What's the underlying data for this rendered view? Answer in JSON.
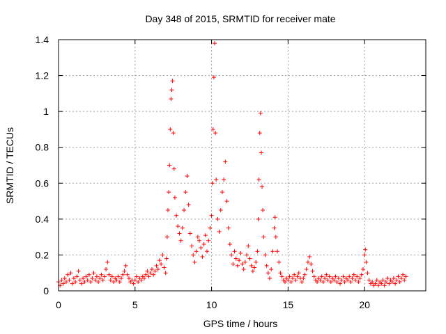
{
  "chart_data": {
    "type": "scatter",
    "title": "Day 348 of 2015, SRMTID for receiver mate",
    "xlabel": "GPS time / hours",
    "ylabel": "SRMTID / TECUs",
    "xlim": [
      0,
      24
    ],
    "ylim": [
      0,
      1.4
    ],
    "x_ticks": [
      "0",
      "5",
      "10",
      "15",
      "20"
    ],
    "y_ticks": [
      "0",
      "0.2",
      "0.4",
      "0.6",
      "0.8",
      "1",
      "1.2",
      "1.4"
    ],
    "grid": true,
    "marker": "+",
    "series": [
      {
        "name": "SRMTID",
        "color": "#ff0000",
        "points": [
          [
            0.0,
            0.05
          ],
          [
            0.1,
            0.03
          ],
          [
            0.2,
            0.06
          ],
          [
            0.3,
            0.04
          ],
          [
            0.4,
            0.07
          ],
          [
            0.5,
            0.05
          ],
          [
            0.6,
            0.09
          ],
          [
            0.7,
            0.06
          ],
          [
            0.8,
            0.1
          ],
          [
            0.9,
            0.04
          ],
          [
            1.0,
            0.07
          ],
          [
            1.1,
            0.05
          ],
          [
            1.2,
            0.08
          ],
          [
            1.3,
            0.11
          ],
          [
            1.4,
            0.06
          ],
          [
            1.5,
            0.04
          ],
          [
            1.6,
            0.07
          ],
          [
            1.7,
            0.05
          ],
          [
            1.8,
            0.08
          ],
          [
            1.9,
            0.06
          ],
          [
            2.0,
            0.09
          ],
          [
            2.1,
            0.05
          ],
          [
            2.2,
            0.07
          ],
          [
            2.3,
            0.1
          ],
          [
            2.4,
            0.06
          ],
          [
            2.5,
            0.08
          ],
          [
            2.6,
            0.05
          ],
          [
            2.7,
            0.07
          ],
          [
            2.8,
            0.09
          ],
          [
            2.9,
            0.06
          ],
          [
            3.0,
            0.08
          ],
          [
            3.1,
            0.12
          ],
          [
            3.2,
            0.16
          ],
          [
            3.3,
            0.09
          ],
          [
            3.4,
            0.06
          ],
          [
            3.5,
            0.08
          ],
          [
            3.6,
            0.05
          ],
          [
            3.7,
            0.07
          ],
          [
            3.8,
            0.06
          ],
          [
            3.9,
            0.08
          ],
          [
            4.0,
            0.05
          ],
          [
            4.1,
            0.07
          ],
          [
            4.2,
            0.09
          ],
          [
            4.3,
            0.11
          ],
          [
            4.4,
            0.14
          ],
          [
            4.5,
            0.09
          ],
          [
            4.6,
            0.07
          ],
          [
            4.7,
            0.05
          ],
          [
            4.8,
            0.06
          ],
          [
            4.9,
            0.04
          ],
          [
            5.0,
            0.06
          ],
          [
            5.1,
            0.08
          ],
          [
            5.2,
            0.05
          ],
          [
            5.3,
            0.07
          ],
          [
            5.4,
            0.06
          ],
          [
            5.5,
            0.08
          ],
          [
            5.6,
            0.07
          ],
          [
            5.7,
            0.09
          ],
          [
            5.8,
            0.11
          ],
          [
            5.9,
            0.08
          ],
          [
            6.0,
            0.1
          ],
          [
            6.1,
            0.12
          ],
          [
            6.2,
            0.09
          ],
          [
            6.3,
            0.11
          ],
          [
            6.4,
            0.14
          ],
          [
            6.5,
            0.12
          ],
          [
            6.6,
            0.17
          ],
          [
            6.7,
            0.15
          ],
          [
            6.8,
            0.2
          ],
          [
            6.9,
            0.13
          ],
          [
            7.0,
            0.1
          ],
          [
            7.05,
            0.18
          ],
          [
            7.1,
            0.3
          ],
          [
            7.15,
            0.45
          ],
          [
            7.2,
            0.55
          ],
          [
            7.25,
            0.7
          ],
          [
            7.3,
            0.9
          ],
          [
            7.35,
            1.07
          ],
          [
            7.4,
            1.12
          ],
          [
            7.45,
            1.17
          ],
          [
            7.5,
            0.88
          ],
          [
            7.55,
            0.68
          ],
          [
            7.6,
            0.52
          ],
          [
            7.7,
            0.42
          ],
          [
            7.8,
            0.36
          ],
          [
            7.9,
            0.32
          ],
          [
            8.0,
            0.28
          ],
          [
            8.1,
            0.35
          ],
          [
            8.2,
            0.45
          ],
          [
            8.3,
            0.55
          ],
          [
            8.4,
            0.64
          ],
          [
            8.5,
            0.48
          ],
          [
            8.6,
            0.32
          ],
          [
            8.7,
            0.25
          ],
          [
            8.8,
            0.2
          ],
          [
            8.9,
            0.16
          ],
          [
            9.0,
            0.22
          ],
          [
            9.1,
            0.3
          ],
          [
            9.2,
            0.28
          ],
          [
            9.3,
            0.24
          ],
          [
            9.4,
            0.19
          ],
          [
            9.5,
            0.26
          ],
          [
            9.6,
            0.31
          ],
          [
            9.7,
            0.22
          ],
          [
            9.8,
            0.28
          ],
          [
            9.9,
            0.35
          ],
          [
            10.0,
            0.42
          ],
          [
            10.05,
            0.6
          ],
          [
            10.1,
            0.9
          ],
          [
            10.15,
            1.19
          ],
          [
            10.2,
            1.38
          ],
          [
            10.25,
            0.88
          ],
          [
            10.3,
            0.62
          ],
          [
            10.4,
            0.4
          ],
          [
            10.5,
            0.33
          ],
          [
            10.6,
            0.45
          ],
          [
            10.7,
            0.55
          ],
          [
            10.8,
            0.62
          ],
          [
            10.9,
            0.72
          ],
          [
            11.0,
            0.5
          ],
          [
            11.1,
            0.35
          ],
          [
            11.2,
            0.26
          ],
          [
            11.3,
            0.2
          ],
          [
            11.4,
            0.15
          ],
          [
            11.5,
            0.22
          ],
          [
            11.6,
            0.18
          ],
          [
            11.7,
            0.14
          ],
          [
            11.8,
            0.17
          ],
          [
            11.9,
            0.21
          ],
          [
            12.0,
            0.15
          ],
          [
            12.1,
            0.12
          ],
          [
            12.2,
            0.16
          ],
          [
            12.3,
            0.2
          ],
          [
            12.4,
            0.25
          ],
          [
            12.5,
            0.18
          ],
          [
            12.6,
            0.14
          ],
          [
            12.7,
            0.11
          ],
          [
            12.8,
            0.13
          ],
          [
            12.9,
            0.16
          ],
          [
            13.0,
            0.22
          ],
          [
            13.05,
            0.4
          ],
          [
            13.1,
            0.62
          ],
          [
            13.15,
            0.88
          ],
          [
            13.2,
            0.99
          ],
          [
            13.25,
            0.77
          ],
          [
            13.3,
            0.58
          ],
          [
            13.35,
            0.45
          ],
          [
            13.4,
            0.3
          ],
          [
            13.5,
            0.2
          ],
          [
            13.6,
            0.14
          ],
          [
            13.7,
            0.1
          ],
          [
            13.8,
            0.07
          ],
          [
            13.9,
            0.12
          ],
          [
            14.0,
            0.22
          ],
          [
            14.1,
            0.35
          ],
          [
            14.15,
            0.41
          ],
          [
            14.2,
            0.3
          ],
          [
            14.3,
            0.22
          ],
          [
            14.4,
            0.16
          ],
          [
            14.5,
            0.1
          ],
          [
            14.6,
            0.08
          ],
          [
            14.7,
            0.06
          ],
          [
            14.8,
            0.05
          ],
          [
            14.9,
            0.07
          ],
          [
            15.0,
            0.06
          ],
          [
            15.1,
            0.08
          ],
          [
            15.2,
            0.05
          ],
          [
            15.3,
            0.07
          ],
          [
            15.4,
            0.09
          ],
          [
            15.5,
            0.06
          ],
          [
            15.6,
            0.08
          ],
          [
            15.7,
            0.1
          ],
          [
            15.8,
            0.07
          ],
          [
            15.9,
            0.05
          ],
          [
            16.0,
            0.07
          ],
          [
            16.1,
            0.09
          ],
          [
            16.2,
            0.12
          ],
          [
            16.3,
            0.16
          ],
          [
            16.4,
            0.19
          ],
          [
            16.5,
            0.15
          ],
          [
            16.6,
            0.11
          ],
          [
            16.7,
            0.08
          ],
          [
            16.8,
            0.06
          ],
          [
            16.9,
            0.05
          ],
          [
            17.0,
            0.07
          ],
          [
            17.1,
            0.06
          ],
          [
            17.2,
            0.08
          ],
          [
            17.3,
            0.05
          ],
          [
            17.4,
            0.07
          ],
          [
            17.5,
            0.09
          ],
          [
            17.6,
            0.06
          ],
          [
            17.7,
            0.08
          ],
          [
            17.8,
            0.05
          ],
          [
            17.9,
            0.07
          ],
          [
            18.0,
            0.06
          ],
          [
            18.1,
            0.08
          ],
          [
            18.2,
            0.05
          ],
          [
            18.3,
            0.07
          ],
          [
            18.4,
            0.04
          ],
          [
            18.5,
            0.06
          ],
          [
            18.6,
            0.08
          ],
          [
            18.7,
            0.05
          ],
          [
            18.8,
            0.07
          ],
          [
            18.9,
            0.06
          ],
          [
            19.0,
            0.08
          ],
          [
            19.1,
            0.05
          ],
          [
            19.2,
            0.07
          ],
          [
            19.3,
            0.09
          ],
          [
            19.4,
            0.06
          ],
          [
            19.5,
            0.08
          ],
          [
            19.6,
            0.05
          ],
          [
            19.7,
            0.07
          ],
          [
            19.8,
            0.09
          ],
          [
            19.9,
            0.12
          ],
          [
            20.0,
            0.2
          ],
          [
            20.05,
            0.23
          ],
          [
            20.1,
            0.16
          ],
          [
            20.2,
            0.1
          ],
          [
            20.3,
            0.06
          ],
          [
            20.4,
            0.04
          ],
          [
            20.5,
            0.05
          ],
          [
            20.6,
            0.03
          ],
          [
            20.7,
            0.04
          ],
          [
            20.8,
            0.06
          ],
          [
            20.9,
            0.03
          ],
          [
            21.0,
            0.05
          ],
          [
            21.1,
            0.04
          ],
          [
            21.2,
            0.06
          ],
          [
            21.3,
            0.03
          ],
          [
            21.4,
            0.05
          ],
          [
            21.5,
            0.07
          ],
          [
            21.6,
            0.04
          ],
          [
            21.7,
            0.06
          ],
          [
            21.8,
            0.05
          ],
          [
            21.9,
            0.07
          ],
          [
            22.0,
            0.04
          ],
          [
            22.1,
            0.06
          ],
          [
            22.2,
            0.08
          ],
          [
            22.3,
            0.05
          ],
          [
            22.4,
            0.07
          ],
          [
            22.5,
            0.09
          ],
          [
            22.6,
            0.06
          ],
          [
            22.7,
            0.08
          ]
        ]
      }
    ]
  }
}
